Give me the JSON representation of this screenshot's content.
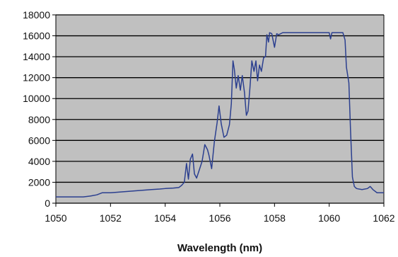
{
  "chart_data": {
    "type": "line",
    "title": "",
    "xlabel": "Wavelength (nm)",
    "ylabel": "",
    "xlim": [
      1050,
      1062
    ],
    "ylim": [
      0,
      18000
    ],
    "x_ticks": [
      1050,
      1052,
      1054,
      1056,
      1058,
      1060,
      1062
    ],
    "x_tick_labels": [
      "1050",
      "1052",
      "1054",
      "1056",
      "1058",
      "1060",
      "1062"
    ],
    "y_ticks": [
      0,
      2000,
      4000,
      6000,
      8000,
      10000,
      12000,
      14000,
      16000,
      18000
    ],
    "y_tick_labels": [
      "0",
      "2000",
      "4000",
      "6000",
      "8000",
      "10000",
      "12000",
      "14000",
      "16000",
      "18000"
    ],
    "grid": true,
    "plot_background": "#c0c0c0",
    "legend": "none",
    "series": [
      {
        "color": "#2b3f8f",
        "points": [
          [
            1050.0,
            600
          ],
          [
            1051.0,
            600
          ],
          [
            1051.3,
            700
          ],
          [
            1051.5,
            800
          ],
          [
            1051.7,
            1000
          ],
          [
            1052.0,
            1000
          ],
          [
            1052.5,
            1100
          ],
          [
            1053.0,
            1200
          ],
          [
            1053.5,
            1300
          ],
          [
            1053.8,
            1350
          ],
          [
            1054.0,
            1400
          ],
          [
            1054.3,
            1450
          ],
          [
            1054.5,
            1500
          ],
          [
            1054.6,
            1700
          ],
          [
            1054.7,
            2000
          ],
          [
            1054.78,
            3800
          ],
          [
            1054.85,
            2300
          ],
          [
            1054.92,
            4200
          ],
          [
            1055.0,
            4700
          ],
          [
            1055.07,
            2800
          ],
          [
            1055.15,
            2400
          ],
          [
            1055.25,
            3200
          ],
          [
            1055.35,
            4000
          ],
          [
            1055.45,
            5600
          ],
          [
            1055.55,
            5100
          ],
          [
            1055.6,
            4600
          ],
          [
            1055.7,
            3300
          ],
          [
            1055.8,
            5900
          ],
          [
            1055.9,
            7700
          ],
          [
            1055.97,
            9300
          ],
          [
            1056.05,
            7600
          ],
          [
            1056.15,
            6300
          ],
          [
            1056.25,
            6500
          ],
          [
            1056.35,
            7500
          ],
          [
            1056.42,
            9500
          ],
          [
            1056.48,
            13600
          ],
          [
            1056.53,
            12800
          ],
          [
            1056.6,
            11000
          ],
          [
            1056.67,
            12200
          ],
          [
            1056.75,
            10800
          ],
          [
            1056.82,
            12200
          ],
          [
            1056.9,
            10600
          ],
          [
            1056.97,
            8400
          ],
          [
            1057.03,
            8800
          ],
          [
            1057.1,
            11000
          ],
          [
            1057.17,
            13600
          ],
          [
            1057.25,
            12600
          ],
          [
            1057.32,
            13600
          ],
          [
            1057.38,
            11700
          ],
          [
            1057.45,
            13200
          ],
          [
            1057.52,
            12600
          ],
          [
            1057.6,
            13900
          ],
          [
            1057.67,
            14000
          ],
          [
            1057.72,
            16100
          ],
          [
            1057.78,
            15400
          ],
          [
            1057.82,
            16300
          ],
          [
            1057.9,
            16200
          ],
          [
            1058.0,
            14900
          ],
          [
            1058.08,
            16200
          ],
          [
            1058.15,
            16100
          ],
          [
            1058.3,
            16300
          ],
          [
            1059.0,
            16300
          ],
          [
            1059.5,
            16300
          ],
          [
            1060.0,
            16300
          ],
          [
            1060.05,
            15700
          ],
          [
            1060.1,
            16300
          ],
          [
            1060.5,
            16300
          ],
          [
            1060.58,
            15600
          ],
          [
            1060.63,
            13000
          ],
          [
            1060.72,
            11500
          ],
          [
            1060.78,
            7000
          ],
          [
            1060.85,
            2500
          ],
          [
            1060.92,
            1600
          ],
          [
            1061.0,
            1400
          ],
          [
            1061.2,
            1300
          ],
          [
            1061.4,
            1400
          ],
          [
            1061.5,
            1600
          ],
          [
            1061.6,
            1300
          ],
          [
            1061.75,
            1000
          ],
          [
            1062.0,
            1000
          ]
        ]
      }
    ]
  }
}
